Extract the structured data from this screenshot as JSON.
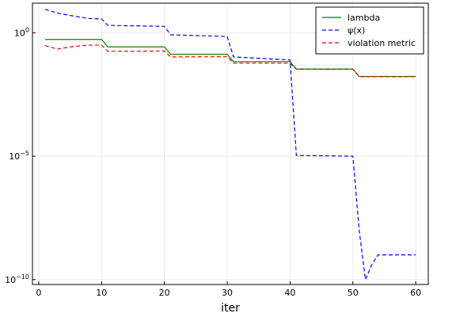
{
  "chart_data": {
    "type": "line",
    "title": "",
    "xlabel": "iter",
    "ylabel": "",
    "xlim": [
      -1,
      62
    ],
    "ylim_log10": [
      -10.2,
      1.2
    ],
    "yscale": "log",
    "grid": true,
    "legend_position": "top-right",
    "x_ticks": [
      0,
      10,
      20,
      30,
      40,
      50,
      60
    ],
    "y_ticks": [
      {
        "exp": 0,
        "label_base": "10",
        "label_exp": "0"
      },
      {
        "exp": -5,
        "label_base": "10",
        "label_exp": "−5"
      },
      {
        "exp": -10,
        "label_base": "10",
        "label_exp": "−10"
      }
    ],
    "series": [
      {
        "name": "lambda",
        "color": "#008000",
        "dash": "solid",
        "x": [
          1,
          10,
          11,
          20,
          21,
          30,
          31,
          40,
          41,
          50,
          51,
          60
        ],
        "y_log10": [
          -0.27,
          -0.27,
          -0.57,
          -0.57,
          -0.87,
          -0.87,
          -1.17,
          -1.17,
          -1.47,
          -1.47,
          -1.77,
          -1.77
        ]
      },
      {
        "name": "ψ(x)",
        "color": "#0000ff",
        "dash": "dashed",
        "x": [
          1,
          3,
          5,
          8,
          10,
          11,
          20,
          21,
          30,
          31,
          40,
          41,
          50,
          51,
          52,
          53,
          54,
          60
        ],
        "y_log10": [
          0.95,
          0.8,
          0.7,
          0.58,
          0.56,
          0.3,
          0.26,
          -0.08,
          -0.15,
          -0.98,
          -1.1,
          -4.97,
          -5.0,
          -8.0,
          -10.0,
          -9.4,
          -9.0,
          -9.0
        ]
      },
      {
        "name": "violation metric",
        "color": "#ff0000",
        "dash": "dashed",
        "x": [
          1,
          3,
          5,
          8,
          10,
          11,
          20,
          21,
          30,
          31,
          40,
          41,
          50,
          51,
          60
        ],
        "y_log10": [
          -0.52,
          -0.66,
          -0.57,
          -0.5,
          -0.5,
          -0.75,
          -0.74,
          -0.98,
          -0.97,
          -1.23,
          -1.23,
          -1.48,
          -1.48,
          -1.78,
          -1.78
        ]
      }
    ]
  }
}
